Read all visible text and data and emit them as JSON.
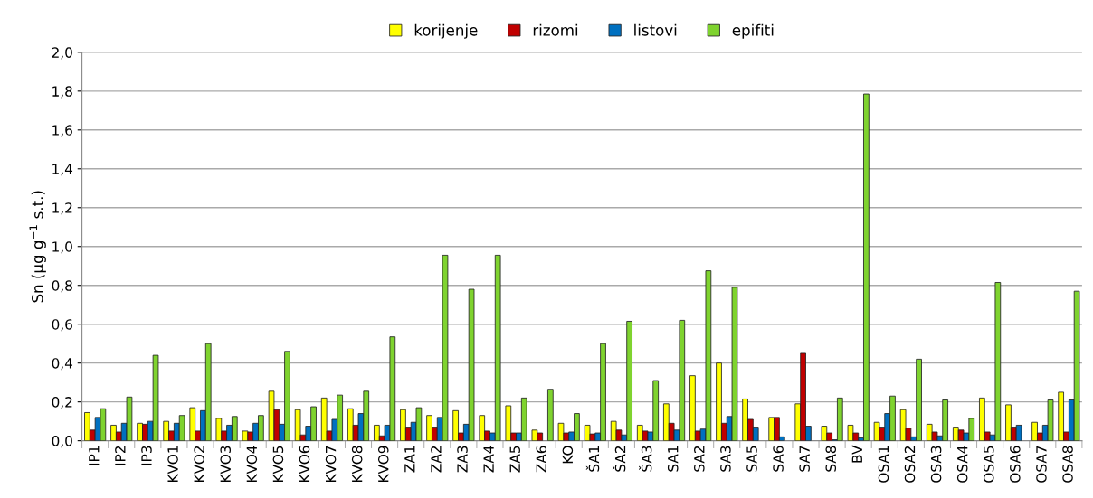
{
  "chart_data": {
    "type": "bar",
    "ylabel": "Sn (µg g$^{−1}$ s.t.)",
    "categories": [
      "IP1",
      "IP2",
      "IP3",
      "KVO1",
      "KVO2",
      "KVO3",
      "KVO4",
      "KVO5",
      "KVO6",
      "KVO7",
      "KVO8",
      "KVO9",
      "ZA1",
      "ZA2",
      "ZA3",
      "ZA4",
      "ZA5",
      "ZA6",
      "KO",
      "ŠA1",
      "ŠA2",
      "ŠA3",
      "SA1",
      "SA2",
      "SA3",
      "SA5",
      "SA6",
      "SA7",
      "SA8",
      "BV",
      "OSA1",
      "OSA2",
      "OSA3",
      "OSA4",
      "OSA5",
      "OSA6",
      "OSA7",
      "OSA8"
    ],
    "series": [
      {
        "name": "korijenje",
        "color": "#ffff00",
        "values": [
          0.145,
          0.08,
          0.09,
          0.1,
          0.17,
          0.115,
          0.05,
          0.255,
          0.16,
          0.22,
          0.165,
          0.08,
          0.16,
          0.13,
          0.155,
          0.13,
          0.18,
          0.055,
          0.09,
          0.08,
          0.1,
          0.08,
          0.19,
          0.335,
          0.4,
          0.215,
          0.12,
          0.19,
          0.075,
          0.08,
          0.095,
          0.16,
          0.085,
          0.07,
          0.22,
          0.185,
          0.095,
          0.25
        ]
      },
      {
        "name": "rizomi",
        "color": "#c00000",
        "values": [
          0.055,
          0.045,
          0.085,
          0.05,
          0.05,
          0.05,
          0.045,
          0.16,
          0.03,
          0.05,
          0.08,
          0.025,
          0.07,
          0.07,
          0.04,
          0.05,
          0.04,
          0.04,
          0.04,
          0.035,
          0.055,
          0.05,
          0.09,
          0.05,
          0.09,
          0.11,
          0.12,
          0.45,
          0.04,
          0.04,
          0.07,
          0.065,
          0.045,
          0.055,
          0.045,
          0.07,
          0.04,
          0.045
        ]
      },
      {
        "name": "listovi",
        "color": "#0070c0",
        "values": [
          0.12,
          0.09,
          0.1,
          0.09,
          0.155,
          0.08,
          0.09,
          0.085,
          0.075,
          0.11,
          0.14,
          0.08,
          0.095,
          0.12,
          0.085,
          0.04,
          0.04,
          null,
          0.045,
          0.04,
          0.03,
          0.045,
          0.055,
          0.06,
          0.125,
          0.07,
          0.02,
          0.075,
          0.005,
          0.015,
          0.14,
          0.02,
          0.025,
          0.04,
          0.03,
          0.08,
          0.08,
          0.21
        ]
      },
      {
        "name": "epifiti",
        "color": "#7fd32f",
        "values": [
          0.165,
          0.225,
          0.44,
          0.13,
          0.5,
          0.125,
          0.13,
          0.46,
          0.175,
          0.235,
          0.255,
          0.535,
          0.17,
          0.955,
          0.78,
          0.955,
          0.22,
          0.265,
          0.14,
          0.5,
          0.615,
          0.31,
          0.62,
          0.875,
          0.79,
          null,
          null,
          null,
          0.22,
          1.785,
          0.23,
          0.42,
          0.21,
          0.115,
          0.815,
          null,
          0.21,
          0.77
        ]
      }
    ],
    "ylim": [
      0,
      2.0
    ],
    "yticks": [
      {
        "value": 0,
        "label": "0,0"
      },
      {
        "value": 0.2,
        "label": "0,2"
      },
      {
        "value": 0.4,
        "label": "0,4"
      },
      {
        "value": 0.6,
        "label": "0,6"
      },
      {
        "value": 0.8,
        "label": "0,8"
      },
      {
        "value": 1.0,
        "label": "1,0"
      },
      {
        "value": 1.2,
        "label": "1,2"
      },
      {
        "value": 1.4,
        "label": "1,4"
      },
      {
        "value": 1.6,
        "label": "1,6"
      },
      {
        "value": 1.8,
        "label": "1,8"
      },
      {
        "value": 2.0,
        "label": "2,0"
      }
    ],
    "grid": "y",
    "legend": "top"
  }
}
